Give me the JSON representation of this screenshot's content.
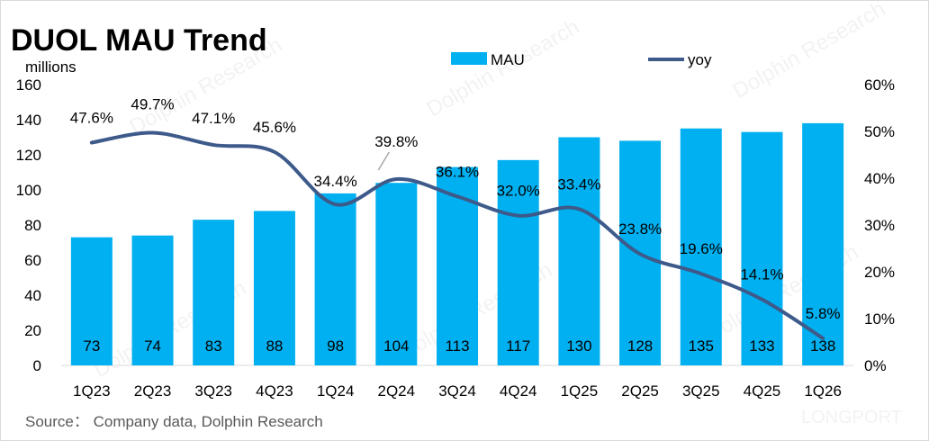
{
  "page": {
    "source": "Source：  Company data, Dolphin Research",
    "watermark_text": "Dolphin Research",
    "watermark_logo": "LONGPORT"
  },
  "colors": {
    "bar": "#00B0F0",
    "line": "#3D5A8A",
    "text": "#000000",
    "source_text": "#595959",
    "axis": "#d9d9d9"
  },
  "chart_data": {
    "type": "bar",
    "title": "DUOL MAU Trend",
    "ylabel": "millions",
    "y2label": "",
    "categories": [
      "1Q23",
      "2Q23",
      "3Q23",
      "4Q23",
      "1Q24",
      "2Q24",
      "3Q24",
      "4Q24",
      "1Q25",
      "2Q25",
      "3Q25",
      "4Q25",
      "1Q26"
    ],
    "series": [
      {
        "name": "MAU",
        "type": "bar",
        "axis": "left",
        "values": [
          73,
          74,
          83,
          88,
          98,
          104,
          113,
          117,
          130,
          128,
          135,
          133,
          138
        ],
        "labels": [
          "73",
          "74",
          "83",
          "88",
          "98",
          "104",
          "113",
          "117",
          "130",
          "128",
          "135",
          "133",
          "138"
        ]
      },
      {
        "name": "yoy",
        "type": "line",
        "axis": "right",
        "values": [
          47.6,
          49.7,
          47.1,
          45.6,
          34.4,
          39.8,
          36.1,
          32.0,
          33.4,
          23.8,
          19.6,
          14.1,
          5.8
        ],
        "labels": [
          "47.6%",
          "49.7%",
          "47.1%",
          "45.6%",
          "34.4%",
          "39.8%",
          "36.1%",
          "32.0%",
          "33.4%",
          "23.8%",
          "19.6%",
          "14.1%",
          "5.8%"
        ]
      }
    ],
    "ylim": [
      0,
      160
    ],
    "y_ticks": [
      "0",
      "20",
      "40",
      "60",
      "80",
      "100",
      "120",
      "140",
      "160"
    ],
    "y2lim": [
      0,
      60
    ],
    "y2_ticks": [
      "0%",
      "10%",
      "20%",
      "30%",
      "40%",
      "50%",
      "60%"
    ],
    "legend_position": "top",
    "grid": false
  }
}
